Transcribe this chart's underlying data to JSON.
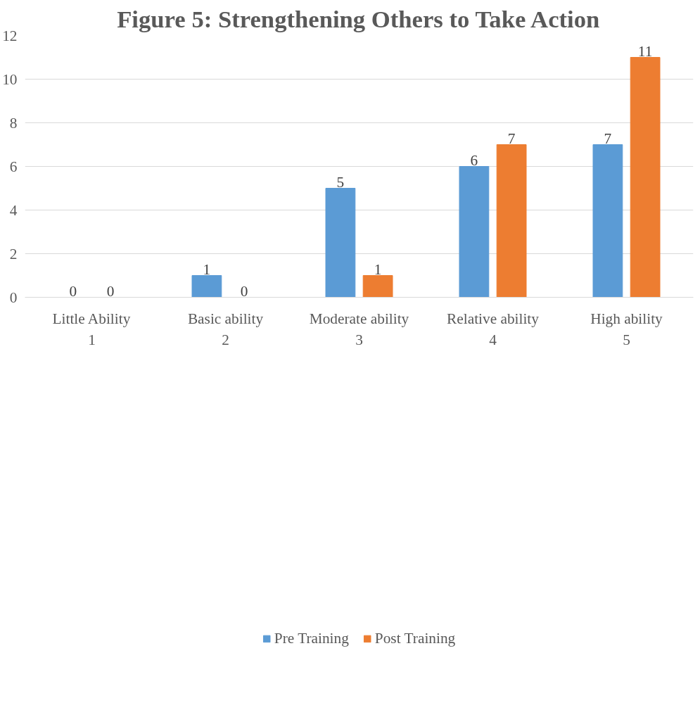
{
  "chart_data": {
    "type": "bar",
    "title": "Figure 5: Strengthening Others to Take Action",
    "categories": [
      "Little Ability\n1",
      "Basic ability\n2",
      "Moderate ability\n3",
      "Relative ability\n4",
      "High ability\n5"
    ],
    "series": [
      {
        "name": "Pre Training",
        "color": "#5b9bd5",
        "values": [
          0,
          1,
          5,
          6,
          7
        ]
      },
      {
        "name": "Post Training",
        "color": "#ed7d31",
        "values": [
          0,
          0,
          1,
          7,
          11
        ]
      }
    ],
    "ylim": [
      0,
      12
    ],
    "yticks": [
      0,
      2,
      4,
      6,
      8,
      10,
      12
    ],
    "grid": "y",
    "legend": "bottom",
    "data_labels": true
  }
}
